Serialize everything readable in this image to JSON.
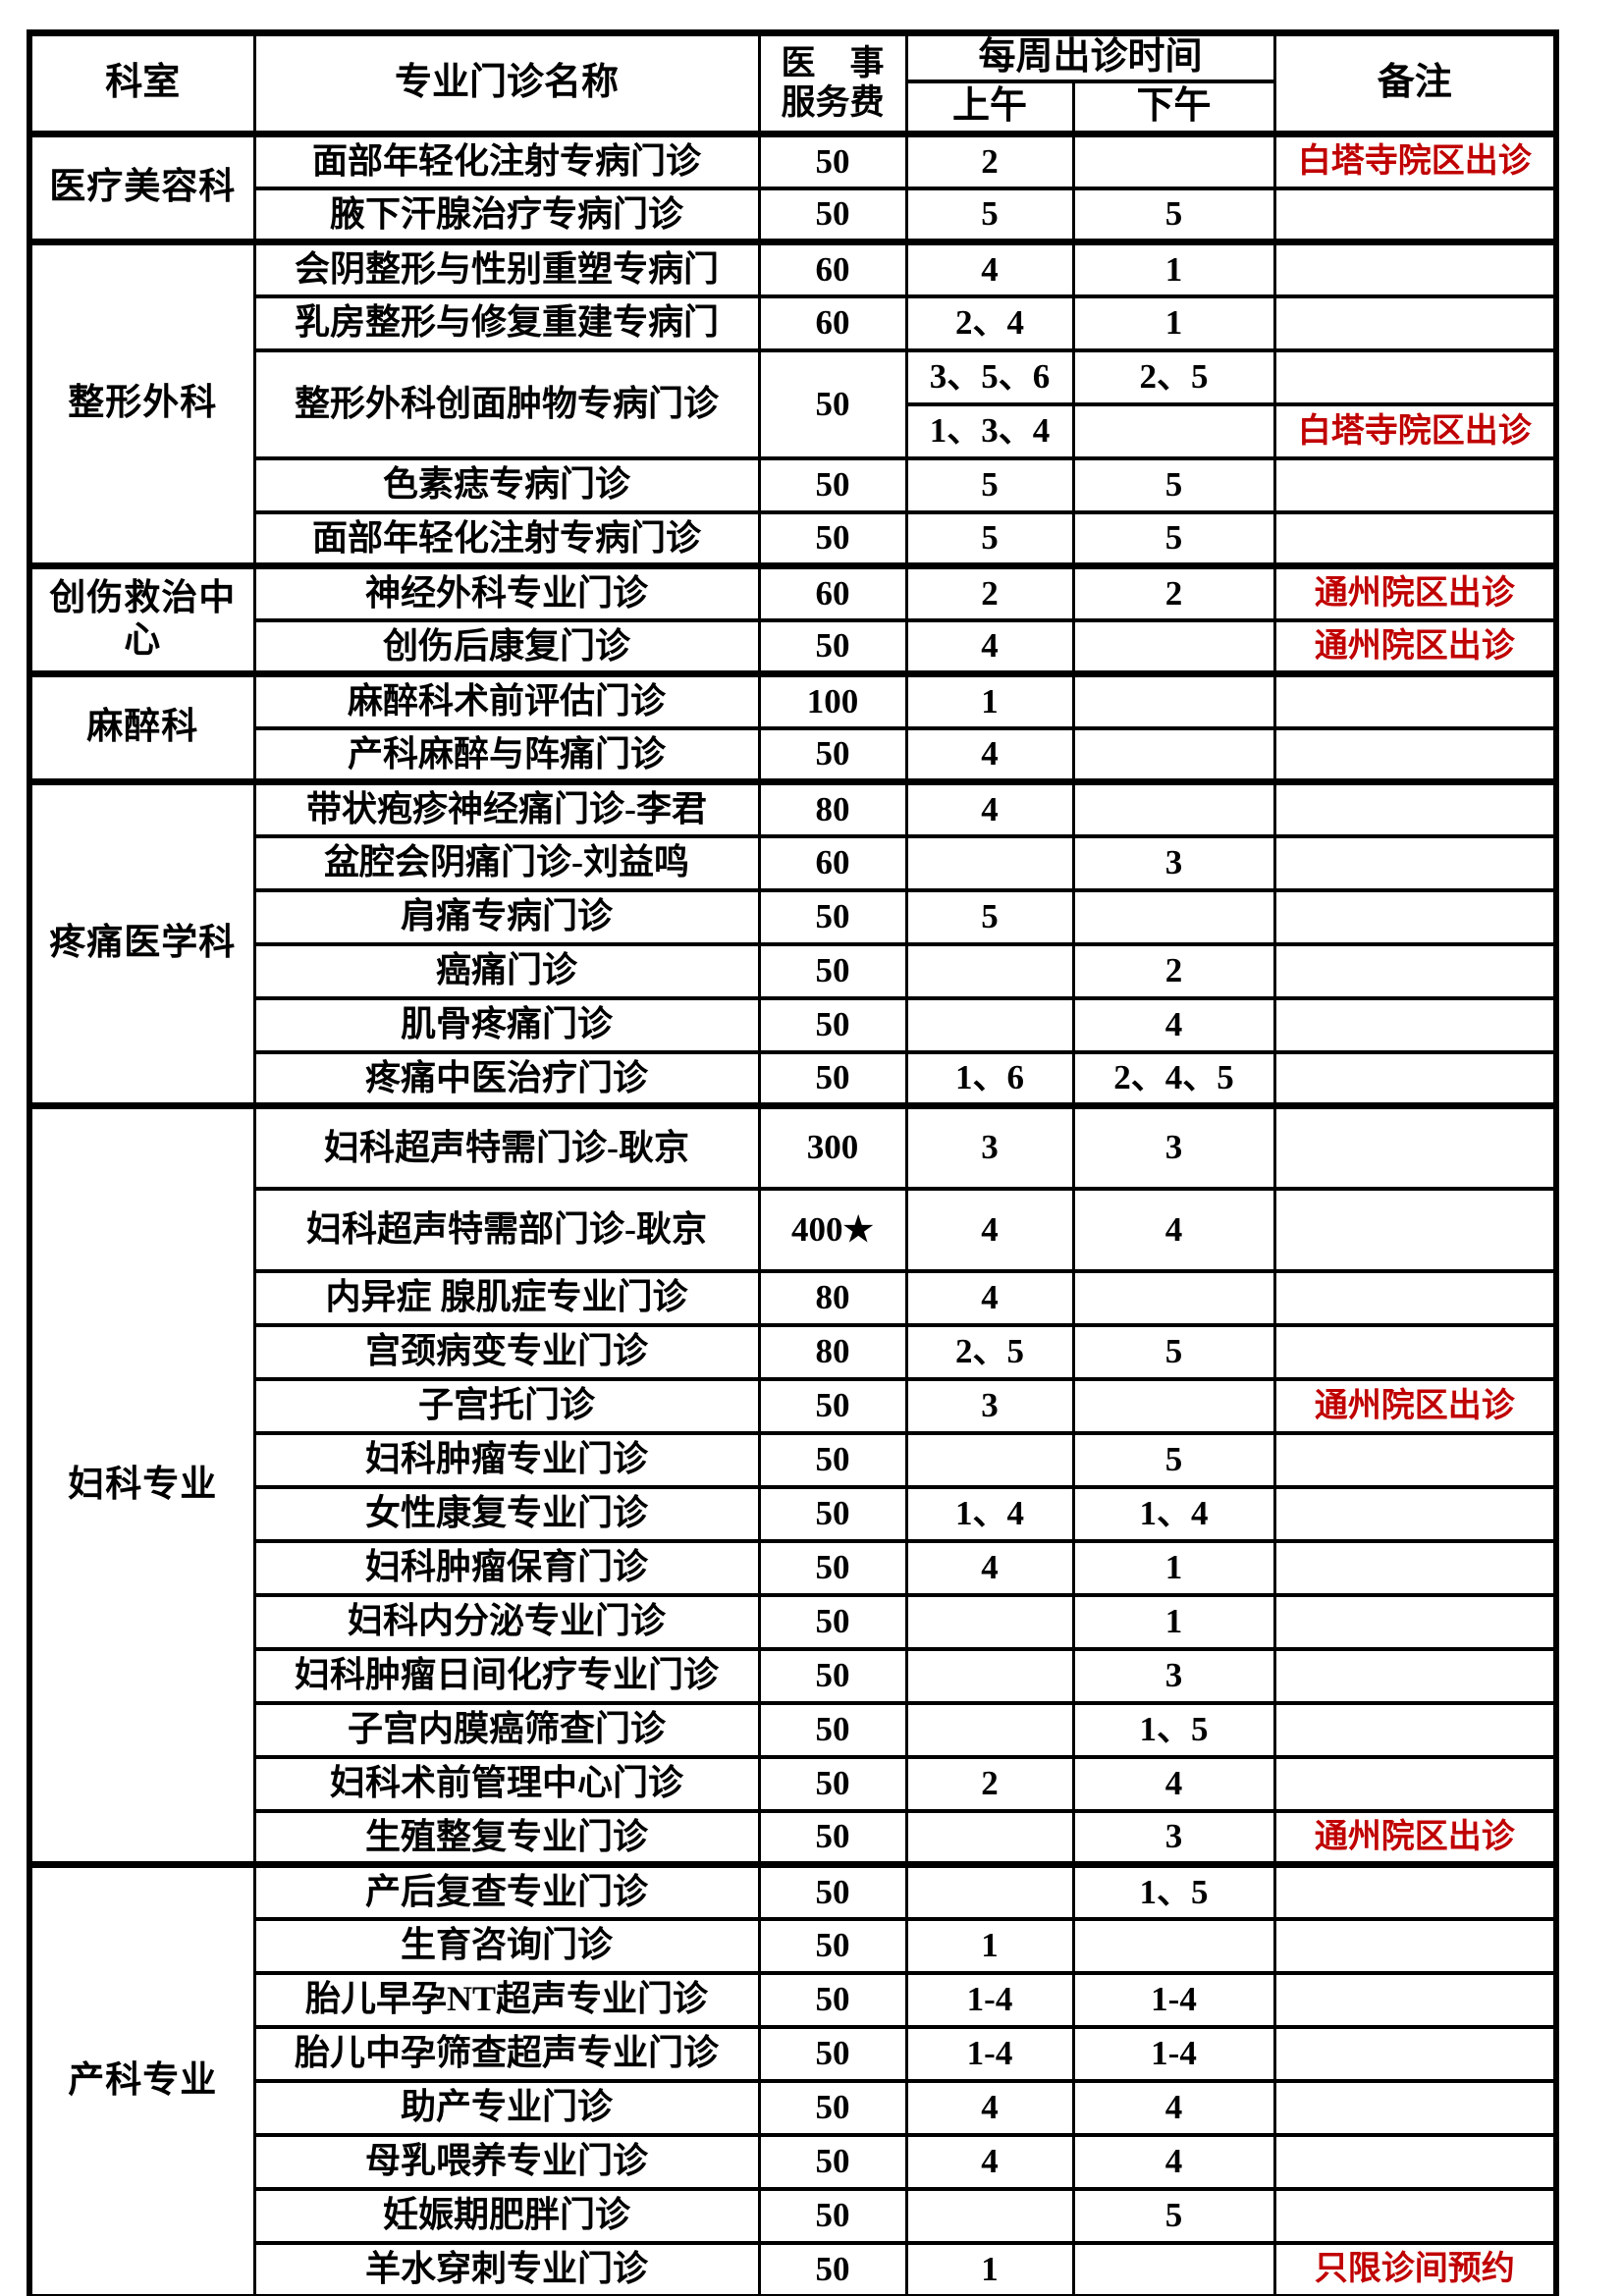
{
  "colors": {
    "text": "#000000",
    "note_red": "#c00000",
    "border": "#000000",
    "background": "#ffffff"
  },
  "header": {
    "dept": "科室",
    "name": "专业门诊名称",
    "fee_line1": "医　事",
    "fee_line2": "服务费",
    "schedule": "每周出诊时间",
    "am": "上午",
    "pm": "下午",
    "note": "备注"
  },
  "sections": [
    {
      "dept": "医疗美容科",
      "rows": [
        {
          "name": "面部年轻化注射专病门诊",
          "fee": "50",
          "am": "2",
          "pm": "",
          "note": "白塔寺院区出诊",
          "note_red": true
        },
        {
          "name": "腋下汗腺治疗专病门诊",
          "fee": "50",
          "am": "5",
          "pm": "5",
          "note": ""
        }
      ]
    },
    {
      "dept": "整形外科",
      "rows": [
        {
          "name": "会阴整形与性别重塑专病门",
          "fee": "60",
          "am": "4",
          "pm": "1",
          "note": ""
        },
        {
          "name": "乳房整形与修复重建专病门",
          "fee": "60",
          "am": "2、4",
          "pm": "1",
          "note": ""
        },
        {
          "name": "整形外科创面肿物专病门诊",
          "fee": "50",
          "subrows": [
            {
              "am": "3、5、6",
              "pm": "2、5",
              "note": ""
            },
            {
              "am": "1、3、4",
              "pm": "",
              "note": "白塔寺院区出诊",
              "note_red": true
            }
          ]
        },
        {
          "name": "色素痣专病门诊",
          "fee": "50",
          "am": "5",
          "pm": "5",
          "note": ""
        },
        {
          "name": "面部年轻化注射专病门诊",
          "fee": "50",
          "am": "5",
          "pm": "5",
          "note": ""
        }
      ]
    },
    {
      "dept": "创伤救治中心",
      "rows": [
        {
          "name": "神经外科专业门诊",
          "fee": "60",
          "am": "2",
          "pm": "2",
          "note": "通州院区出诊",
          "note_red": true
        },
        {
          "name": "创伤后康复门诊",
          "fee": "50",
          "am": "4",
          "pm": "",
          "note": "通州院区出诊",
          "note_red": true
        }
      ]
    },
    {
      "dept": "麻醉科",
      "rows": [
        {
          "name": "麻醉科术前评估门诊",
          "fee": "100",
          "am": "1",
          "pm": "",
          "note": ""
        },
        {
          "name": "产科麻醉与阵痛门诊",
          "fee": "50",
          "am": "4",
          "pm": "",
          "note": ""
        }
      ]
    },
    {
      "dept": "疼痛医学科",
      "rows": [
        {
          "name": "带状疱疹神经痛门诊-李君",
          "fee": "80",
          "am": "4",
          "pm": "",
          "note": ""
        },
        {
          "name": "盆腔会阴痛门诊-刘益鸣",
          "fee": "60",
          "am": "",
          "pm": "3",
          "note": ""
        },
        {
          "name": "肩痛专病门诊",
          "fee": "50",
          "am": "5",
          "pm": "",
          "note": ""
        },
        {
          "name": "癌痛门诊",
          "fee": "50",
          "am": "",
          "pm": "2",
          "note": ""
        },
        {
          "name": "肌骨疼痛门诊",
          "fee": "50",
          "am": "",
          "pm": "4",
          "note": ""
        },
        {
          "name": "疼痛中医治疗门诊",
          "fee": "50",
          "am": "1、6",
          "pm": "2、4、5",
          "note": ""
        }
      ]
    },
    {
      "dept": "妇科专业",
      "rows": [
        {
          "name": "妇科超声特需门诊-耿京",
          "fee": "300",
          "am": "3",
          "pm": "3",
          "note": ""
        },
        {
          "name": "妇科超声特需部门诊-耿京",
          "fee": "400★",
          "am": "4",
          "pm": "4",
          "note": ""
        },
        {
          "name": "内异症 腺肌症专业门诊",
          "fee": "80",
          "am": "4",
          "pm": "",
          "note": ""
        },
        {
          "name": "宫颈病变专业门诊",
          "fee": "80",
          "am": "2、5",
          "pm": "5",
          "note": ""
        },
        {
          "name": "子宫托门诊",
          "fee": "50",
          "am": "3",
          "pm": "",
          "note": "通州院区出诊",
          "note_red": true
        },
        {
          "name": "妇科肿瘤专业门诊",
          "fee": "50",
          "am": "",
          "pm": "5",
          "note": ""
        },
        {
          "name": "女性康复专业门诊",
          "fee": "50",
          "am": "1、4",
          "pm": "1、4",
          "note": ""
        },
        {
          "name": "妇科肿瘤保育门诊",
          "fee": "50",
          "am": "4",
          "pm": "1",
          "note": ""
        },
        {
          "name": "妇科内分泌专业门诊",
          "fee": "50",
          "am": "",
          "pm": "1",
          "note": ""
        },
        {
          "name": "妇科肿瘤日间化疗专业门诊",
          "fee": "50",
          "am": "",
          "pm": "3",
          "note": ""
        },
        {
          "name": "子宫内膜癌筛查门诊",
          "fee": "50",
          "am": "",
          "pm": "1、5",
          "note": ""
        },
        {
          "name": "妇科术前管理中心门诊",
          "fee": "50",
          "am": "2",
          "pm": "4",
          "note": ""
        },
        {
          "name": "生殖整复专业门诊",
          "fee": "50",
          "am": "",
          "pm": "3",
          "note": "通州院区出诊",
          "note_red": true
        }
      ]
    },
    {
      "dept": "产科专业",
      "rows": [
        {
          "name": "产后复查专业门诊",
          "fee": "50",
          "am": "",
          "pm": "1、5",
          "note": ""
        },
        {
          "name": "生育咨询门诊",
          "fee": "50",
          "am": "1",
          "pm": "",
          "note": ""
        },
        {
          "name": "胎儿早孕NT超声专业门诊",
          "fee": "50",
          "am": "1-4",
          "pm": "1-4",
          "note": ""
        },
        {
          "name": "胎儿中孕筛查超声专业门诊",
          "fee": "50",
          "am": "1-4",
          "pm": "1-4",
          "note": ""
        },
        {
          "name": "助产专业门诊",
          "fee": "50",
          "am": "4",
          "pm": "4",
          "note": ""
        },
        {
          "name": "母乳喂养专业门诊",
          "fee": "50",
          "am": "4",
          "pm": "4",
          "note": ""
        },
        {
          "name": "妊娠期肥胖门诊",
          "fee": "50",
          "am": "",
          "pm": "5",
          "note": ""
        },
        {
          "name": "羊水穿刺专业门诊",
          "fee": "50",
          "am": "1",
          "pm": "",
          "note": "只限诊间预约",
          "note_red": true
        }
      ]
    }
  ]
}
